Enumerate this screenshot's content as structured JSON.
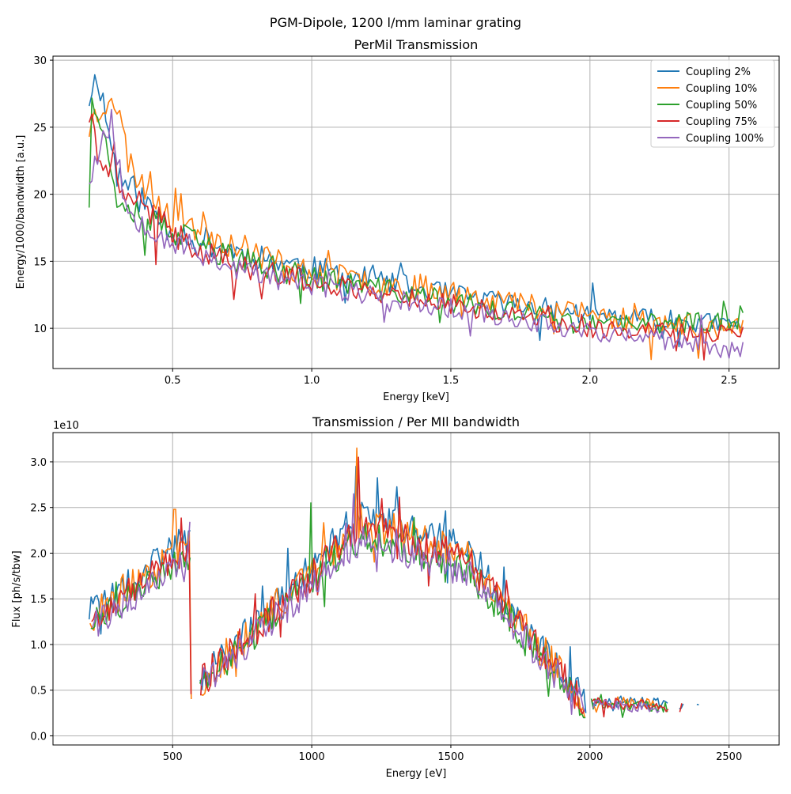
{
  "figure": {
    "suptitle": "PGM-Dipole, 1200 l/mm laminar grating"
  },
  "colors": {
    "series": [
      "#1f77b4",
      "#ff7f0e",
      "#2ca02c",
      "#d62728",
      "#9467bd"
    ],
    "grid": "#b0b0b0",
    "legend_border": "#cccccc"
  },
  "chart_data": [
    {
      "type": "line",
      "title": "PerMil Transmission",
      "xlabel": "Energy [keV]",
      "ylabel": "Energy/1000/bandwidth [a.u.]",
      "xlim": [
        0.07,
        2.68
      ],
      "ylim": [
        7.0,
        30.3
      ],
      "xticks": [
        0.5,
        1.0,
        1.5,
        2.0,
        2.5
      ],
      "xtick_labels": [
        "0.5",
        "1.0",
        "1.5",
        "2.0",
        "2.5"
      ],
      "yticks": [
        10,
        15,
        20,
        25,
        30
      ],
      "ytick_labels": [
        "10",
        "15",
        "20",
        "25",
        "30"
      ],
      "grid": true,
      "legend_position": "top-right",
      "x_start": 0.2,
      "x_end": 2.55,
      "x_step": 0.01,
      "series": [
        {
          "name": "Coupling 2%",
          "anchors": [
            [
              0.2,
              27.2
            ],
            [
              0.23,
              29.0
            ],
            [
              0.3,
              21.5
            ],
            [
              0.5,
              17.3
            ],
            [
              0.75,
              15.6
            ],
            [
              1.0,
              14.5
            ],
            [
              1.5,
              12.5
            ],
            [
              2.0,
              11.0
            ],
            [
              2.55,
              10.2
            ]
          ],
          "noise": 1.2,
          "seed": 11
        },
        {
          "name": "Coupling 10%",
          "anchors": [
            [
              0.2,
              25.0
            ],
            [
              0.28,
              27.9
            ],
            [
              0.35,
              22.0
            ],
            [
              0.5,
              18.5
            ],
            [
              0.75,
              16.0
            ],
            [
              1.0,
              14.0
            ],
            [
              1.5,
              12.8
            ],
            [
              2.0,
              11.0
            ],
            [
              2.55,
              9.8
            ]
          ],
          "noise": 1.4,
          "seed": 23
        },
        {
          "name": "Coupling 50%",
          "anchors": [
            [
              0.2,
              19.6
            ],
            [
              0.21,
              28.0
            ],
            [
              0.3,
              20.0
            ],
            [
              0.5,
              17.0
            ],
            [
              0.75,
              15.0
            ],
            [
              1.0,
              13.8
            ],
            [
              1.5,
              12.0
            ],
            [
              2.0,
              10.2
            ],
            [
              2.55,
              10.6
            ]
          ],
          "noise": 1.2,
          "seed": 37
        },
        {
          "name": "Coupling 75%",
          "anchors": [
            [
              0.2,
              25.9
            ],
            [
              0.25,
              22.0
            ],
            [
              0.4,
              19.0
            ],
            [
              0.5,
              17.0
            ],
            [
              0.75,
              14.5
            ],
            [
              1.0,
              13.5
            ],
            [
              1.5,
              11.8
            ],
            [
              2.0,
              10.0
            ],
            [
              2.55,
              9.5
            ]
          ],
          "noise": 1.1,
          "seed": 41
        },
        {
          "name": "Coupling 100%",
          "anchors": [
            [
              0.2,
              21.3
            ],
            [
              0.28,
              25.6
            ],
            [
              0.33,
              19.0
            ],
            [
              0.5,
              16.5
            ],
            [
              0.75,
              14.3
            ],
            [
              1.0,
              13.2
            ],
            [
              1.5,
              11.5
            ],
            [
              2.0,
              9.8
            ],
            [
              2.55,
              8.3
            ]
          ],
          "noise": 1.1,
          "seed": 53
        }
      ]
    },
    {
      "type": "line",
      "title": "Transmission / Per MIl bandwidth",
      "xlabel": "Energy [eV]",
      "ylabel": "Flux [ph/s/tbw]",
      "offset_text": "1e10",
      "xlim": [
        70,
        2680
      ],
      "ylim": [
        -0.1,
        3.32
      ],
      "y_unit_scale": 10000000000.0,
      "xticks": [
        500,
        1000,
        1500,
        2000,
        2500
      ],
      "xtick_labels": [
        "500",
        "1000",
        "1500",
        "2000",
        "2500"
      ],
      "yticks": [
        0.0,
        0.5,
        1.0,
        1.5,
        2.0,
        2.5,
        3.0
      ],
      "ytick_labels": [
        "0.0",
        "0.5",
        "1.0",
        "1.5",
        "2.0",
        "2.5",
        "3.0"
      ],
      "grid": true,
      "x_start": 200,
      "x_end": 2430,
      "x_step": 7,
      "series": [
        {
          "name": "Coupling 2%",
          "peak": 2.45,
          "noise": 0.18,
          "seed": 101,
          "spike": [
            1160,
            2.95
          ],
          "tail_end": 2430
        },
        {
          "name": "Coupling 10%",
          "peak": 2.35,
          "noise": 0.2,
          "seed": 202,
          "spike": [
            1165,
            3.15
          ],
          "tail_end": 2250
        },
        {
          "name": "Coupling 50%",
          "peak": 2.2,
          "noise": 0.17,
          "seed": 303,
          "spike": [
            1000,
            2.55
          ],
          "tail_end": 2280
        },
        {
          "name": "Coupling 75%",
          "peak": 2.3,
          "noise": 0.18,
          "seed": 404,
          "spike": [
            1170,
            3.05
          ],
          "tail_end": 2390
        },
        {
          "name": "Coupling 100%",
          "peak": 2.15,
          "noise": 0.18,
          "seed": 505,
          "spike": [
            1150,
            2.65
          ],
          "tail_end": 2250
        }
      ]
    }
  ]
}
